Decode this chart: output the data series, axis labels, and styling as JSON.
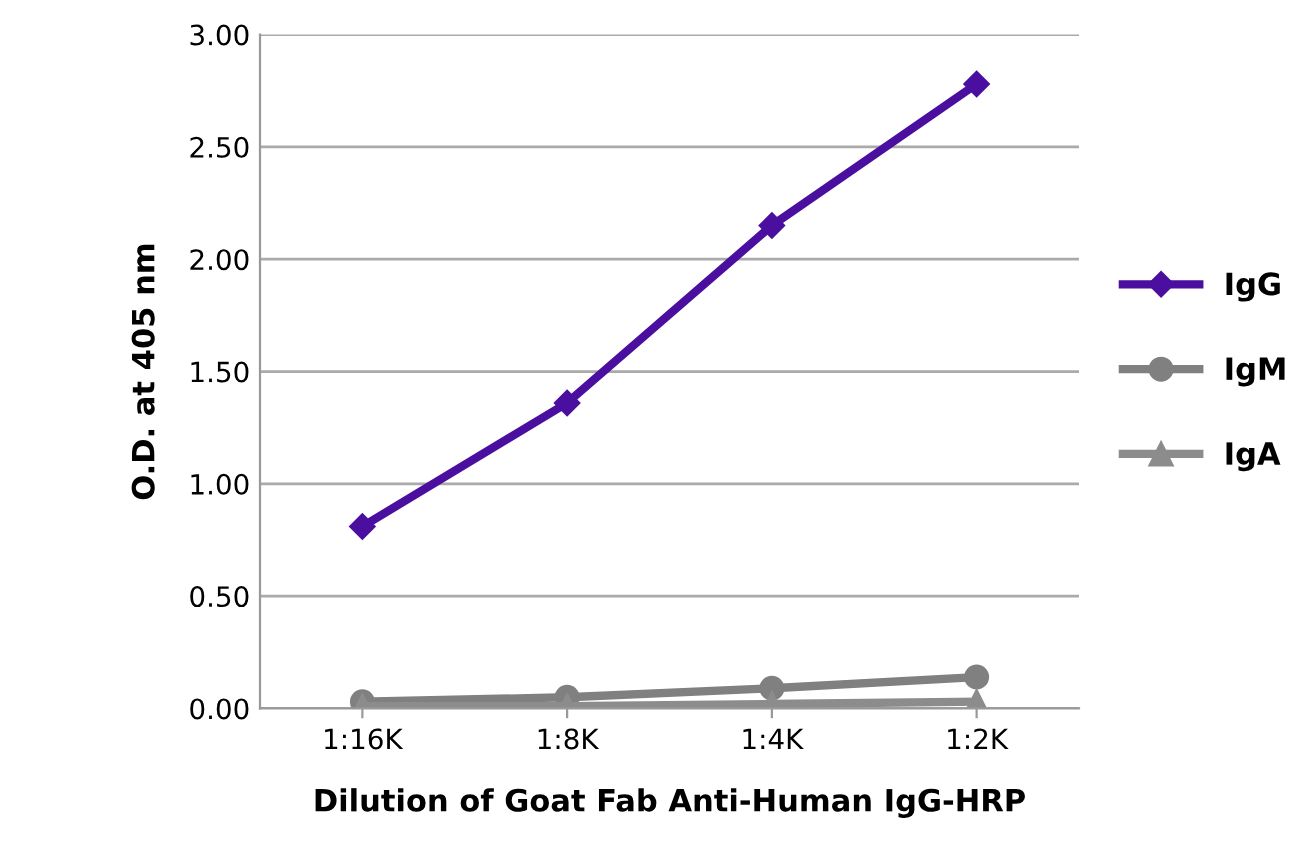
{
  "chart_data": {
    "type": "line",
    "xlabel": "Dilution of Goat Fab Anti-Human IgG-HRP",
    "ylabel": "O.D. at 405 nm",
    "categories": [
      "1:16K",
      "1:8K",
      "1:4K",
      "1:2K"
    ],
    "series": [
      {
        "name": "IgG",
        "color": "#4b0fa0",
        "marker": "diamond",
        "values": [
          0.81,
          1.36,
          2.15,
          2.78
        ]
      },
      {
        "name": "IgM",
        "color": "#808080",
        "marker": "circle",
        "values": [
          0.03,
          0.05,
          0.09,
          0.14
        ]
      },
      {
        "name": "IgA",
        "color": "#8c8c8c",
        "marker": "triangle",
        "values": [
          0.01,
          0.01,
          0.02,
          0.03
        ]
      }
    ],
    "ylim": [
      0,
      3
    ],
    "yticks": [
      {
        "value": 0,
        "label": "0.00"
      },
      {
        "value": 0.5,
        "label": "0.50"
      },
      {
        "value": 1,
        "label": "1.00"
      },
      {
        "value": 1.5,
        "label": "1.50"
      },
      {
        "value": 2,
        "label": "2.00"
      },
      {
        "value": 2.5,
        "label": "2.50"
      },
      {
        "value": 3,
        "label": "3.00"
      }
    ],
    "grid": "y",
    "legend": "right"
  }
}
